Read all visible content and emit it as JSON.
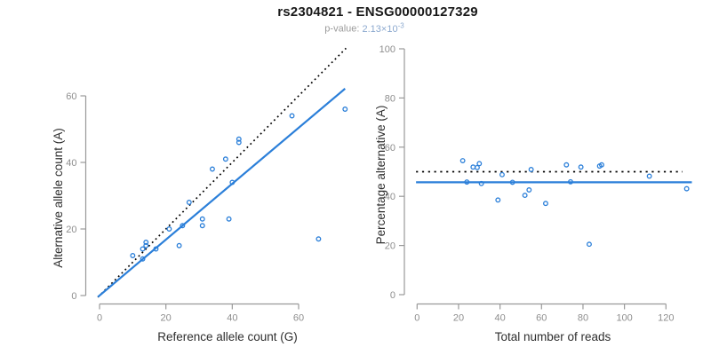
{
  "header": {
    "title": "rs2304821 - ENSG00000127329",
    "pvalue_label": "p-value:",
    "pvalue_value": "2.13×10",
    "pvalue_exponent": "-3"
  },
  "colors": {
    "point": "#2b7fd9",
    "line_blue": "#2b7fd9",
    "line_black": "#000000",
    "axis": "#999999",
    "tick_label": "#8e8e8e",
    "title": "#1a1a1a",
    "subtitle": "#9b9b9b",
    "pvalue_value": "#8ca9cf"
  },
  "chart_data": [
    {
      "type": "scatter",
      "name": "allele-counts",
      "xlabel": "Reference allele count (G)",
      "ylabel": "Alternative allele count (A)",
      "xlim": [
        0,
        78
      ],
      "ylim": [
        0,
        64
      ],
      "xticks": [
        0,
        20,
        40,
        60
      ],
      "yticks": [
        0,
        20,
        40,
        60
      ],
      "grid": false,
      "points": [
        [
          10,
          12
        ],
        [
          13,
          11
        ],
        [
          13,
          14
        ],
        [
          14,
          15
        ],
        [
          14,
          16
        ],
        [
          17,
          14
        ],
        [
          21,
          20
        ],
        [
          24,
          15
        ],
        [
          25,
          21
        ],
        [
          27,
          28
        ],
        [
          31,
          21
        ],
        [
          31,
          23
        ],
        [
          34,
          38
        ],
        [
          38,
          41
        ],
        [
          39,
          23
        ],
        [
          40,
          34
        ],
        [
          42,
          46
        ],
        [
          42,
          47
        ],
        [
          58,
          54
        ],
        [
          66,
          17
        ],
        [
          74,
          56
        ]
      ],
      "lines": [
        {
          "name": "identity-line",
          "style": "dotted",
          "color": "#000000",
          "slope": 1,
          "intercept": 0,
          "x_range": [
            -0.5,
            74.3
          ]
        },
        {
          "name": "regression-line",
          "style": "solid",
          "color": "#2b7fd9",
          "slope": 0.84,
          "intercept": 0,
          "x_range": [
            -0.5,
            74.0
          ]
        }
      ]
    },
    {
      "type": "scatter",
      "name": "percentage-alternative",
      "xlabel": "Total number of reads",
      "ylabel": "Percentage alternative (A)",
      "xlim": [
        0,
        135
      ],
      "ylim": [
        0,
        100
      ],
      "xticks": [
        0,
        20,
        40,
        60,
        80,
        100,
        120
      ],
      "yticks": [
        0,
        20,
        40,
        60,
        80,
        100
      ],
      "grid": false,
      "points": [
        [
          22,
          54.5
        ],
        [
          24,
          45.8
        ],
        [
          27,
          51.9
        ],
        [
          29,
          51.7
        ],
        [
          30,
          53.3
        ],
        [
          31,
          45.2
        ],
        [
          39,
          38.5
        ],
        [
          41,
          48.8
        ],
        [
          46,
          45.7
        ],
        [
          52,
          40.4
        ],
        [
          54,
          42.6
        ],
        [
          55,
          50.9
        ],
        [
          62,
          37.1
        ],
        [
          72,
          52.8
        ],
        [
          74,
          45.9
        ],
        [
          79,
          51.9
        ],
        [
          83,
          20.5
        ],
        [
          88,
          52.3
        ],
        [
          89,
          52.8
        ],
        [
          112,
          48.2
        ],
        [
          130,
          43.1
        ]
      ],
      "lines": [
        {
          "name": "expected-50pct-line",
          "style": "dotted",
          "color": "#000000",
          "y": 50,
          "x_range": [
            -0.5,
            128
          ]
        },
        {
          "name": "mean-percentage-line",
          "style": "solid",
          "color": "#2b7fd9",
          "y": 45.7,
          "x_range": [
            -0.5,
            132.5
          ]
        }
      ]
    }
  ]
}
